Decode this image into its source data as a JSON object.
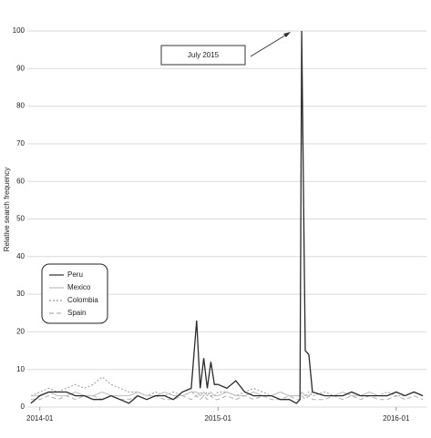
{
  "chart_data": {
    "type": "line",
    "y_label": "Relative search frequency",
    "annotation": "July 2015",
    "x": [
      2013.95,
      2014.0,
      2014.05,
      2014.1,
      2014.15,
      2014.2,
      2014.25,
      2014.3,
      2014.35,
      2014.4,
      2014.45,
      2014.5,
      2014.55,
      2014.6,
      2014.65,
      2014.7,
      2014.75,
      2014.8,
      2014.85,
      2014.88,
      2014.9,
      2014.92,
      2014.94,
      2014.96,
      2014.98,
      2015.0,
      2015.05,
      2015.1,
      2015.15,
      2015.2,
      2015.25,
      2015.3,
      2015.35,
      2015.4,
      2015.44,
      2015.46,
      2015.47,
      2015.49,
      2015.51,
      2015.53,
      2015.6,
      2015.65,
      2015.7,
      2015.75,
      2015.8,
      2015.85,
      2015.9,
      2015.95,
      2016.0,
      2016.05,
      2016.1,
      2016.15
    ],
    "series": [
      {
        "name": "Peru",
        "color": "#2b2b2b",
        "dash": "solid",
        "values": [
          1,
          3,
          4,
          4,
          4,
          3,
          3,
          2,
          2,
          3,
          2,
          1,
          3,
          2,
          3,
          3,
          2,
          4,
          5,
          23,
          5,
          13,
          5,
          12,
          6,
          6,
          5,
          7,
          4,
          3,
          3,
          3,
          2,
          2,
          1,
          2,
          100,
          15,
          14,
          4,
          3,
          3,
          3,
          4,
          3,
          3,
          3,
          3,
          4,
          3,
          4,
          3
        ]
      },
      {
        "name": "Mexico",
        "color": "#bdbdbd",
        "dash": "solid",
        "values": [
          3,
          3,
          4,
          3,
          3,
          4,
          3,
          3,
          4,
          3,
          3,
          3,
          4,
          3,
          3,
          4,
          3,
          3,
          4,
          4,
          3,
          4,
          3,
          4,
          3,
          3,
          4,
          3,
          3,
          4,
          3,
          3,
          4,
          3,
          3,
          3,
          4,
          3,
          3,
          4,
          3,
          3,
          4,
          3,
          3,
          4,
          3,
          3,
          4,
          3,
          4,
          3
        ]
      },
      {
        "name": "Colombia",
        "color": "#9a9a9a",
        "dash": "dotted",
        "values": [
          3,
          4,
          5,
          4,
          5,
          6,
          5,
          6,
          8,
          6,
          5,
          4,
          4,
          3,
          4,
          3,
          4,
          3,
          4,
          3,
          4,
          3,
          4,
          3,
          3,
          4,
          4,
          3,
          4,
          5,
          4,
          3,
          4,
          3,
          3,
          3,
          4,
          3,
          4,
          3,
          4,
          3,
          3,
          4,
          3,
          4,
          3,
          4,
          3,
          3,
          4,
          3
        ]
      },
      {
        "name": "Spain",
        "color": "#b0b0b0",
        "dash": "dashed",
        "values": [
          2,
          2,
          3,
          2,
          3,
          2,
          3,
          3,
          2,
          3,
          2,
          2,
          3,
          2,
          3,
          2,
          2,
          3,
          2,
          3,
          2,
          3,
          2,
          3,
          2,
          2,
          3,
          2,
          3,
          2,
          3,
          2,
          2,
          3,
          2,
          2,
          3,
          2,
          3,
          2,
          2,
          3,
          2,
          3,
          2,
          3,
          2,
          2,
          3,
          2,
          3,
          2
        ]
      }
    ],
    "xlim": [
      2013.93,
      2016.17
    ],
    "xticks": [
      {
        "value": 2014,
        "label": "2014-01"
      },
      {
        "value": 2015,
        "label": "2015-01"
      },
      {
        "value": 2016,
        "label": "2016-01"
      }
    ],
    "ylim": [
      0,
      100
    ],
    "yticks": [
      0,
      10,
      20,
      30,
      40,
      50,
      60,
      70,
      80,
      90,
      100
    ],
    "grid": true,
    "legend": "lower left"
  }
}
